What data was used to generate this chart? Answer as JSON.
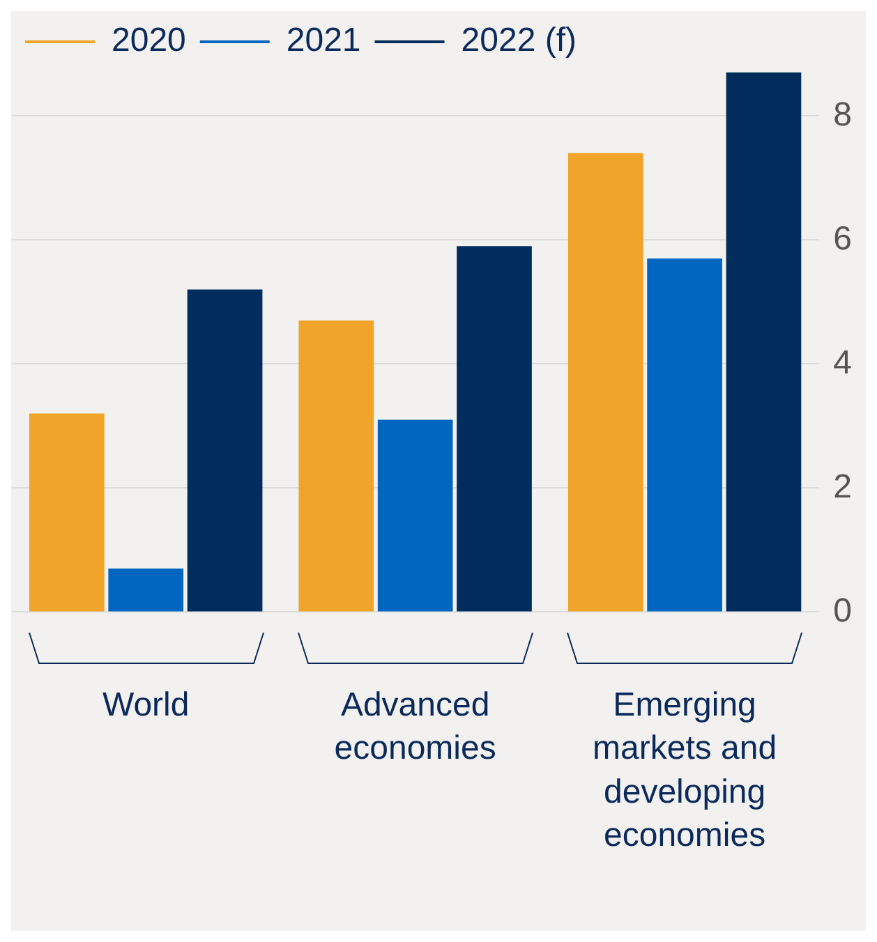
{
  "chart_data": {
    "type": "bar",
    "categories": [
      "World",
      "Advanced economies",
      "Emerging markets and developing economies"
    ],
    "series": [
      {
        "name": "2020",
        "color": "#f0a429",
        "values": [
          3.2,
          4.7,
          7.4
        ]
      },
      {
        "name": "2021",
        "color": "#0066bf",
        "values": [
          0.7,
          3.1,
          5.7
        ]
      },
      {
        "name": "2022 (f)",
        "color": "#002d5c",
        "values": [
          5.2,
          5.9,
          8.7
        ]
      }
    ],
    "ylim": [
      0,
      8.7
    ],
    "yticks": [
      0,
      2,
      4,
      6,
      8
    ],
    "grid": "y",
    "legend": "top left"
  }
}
